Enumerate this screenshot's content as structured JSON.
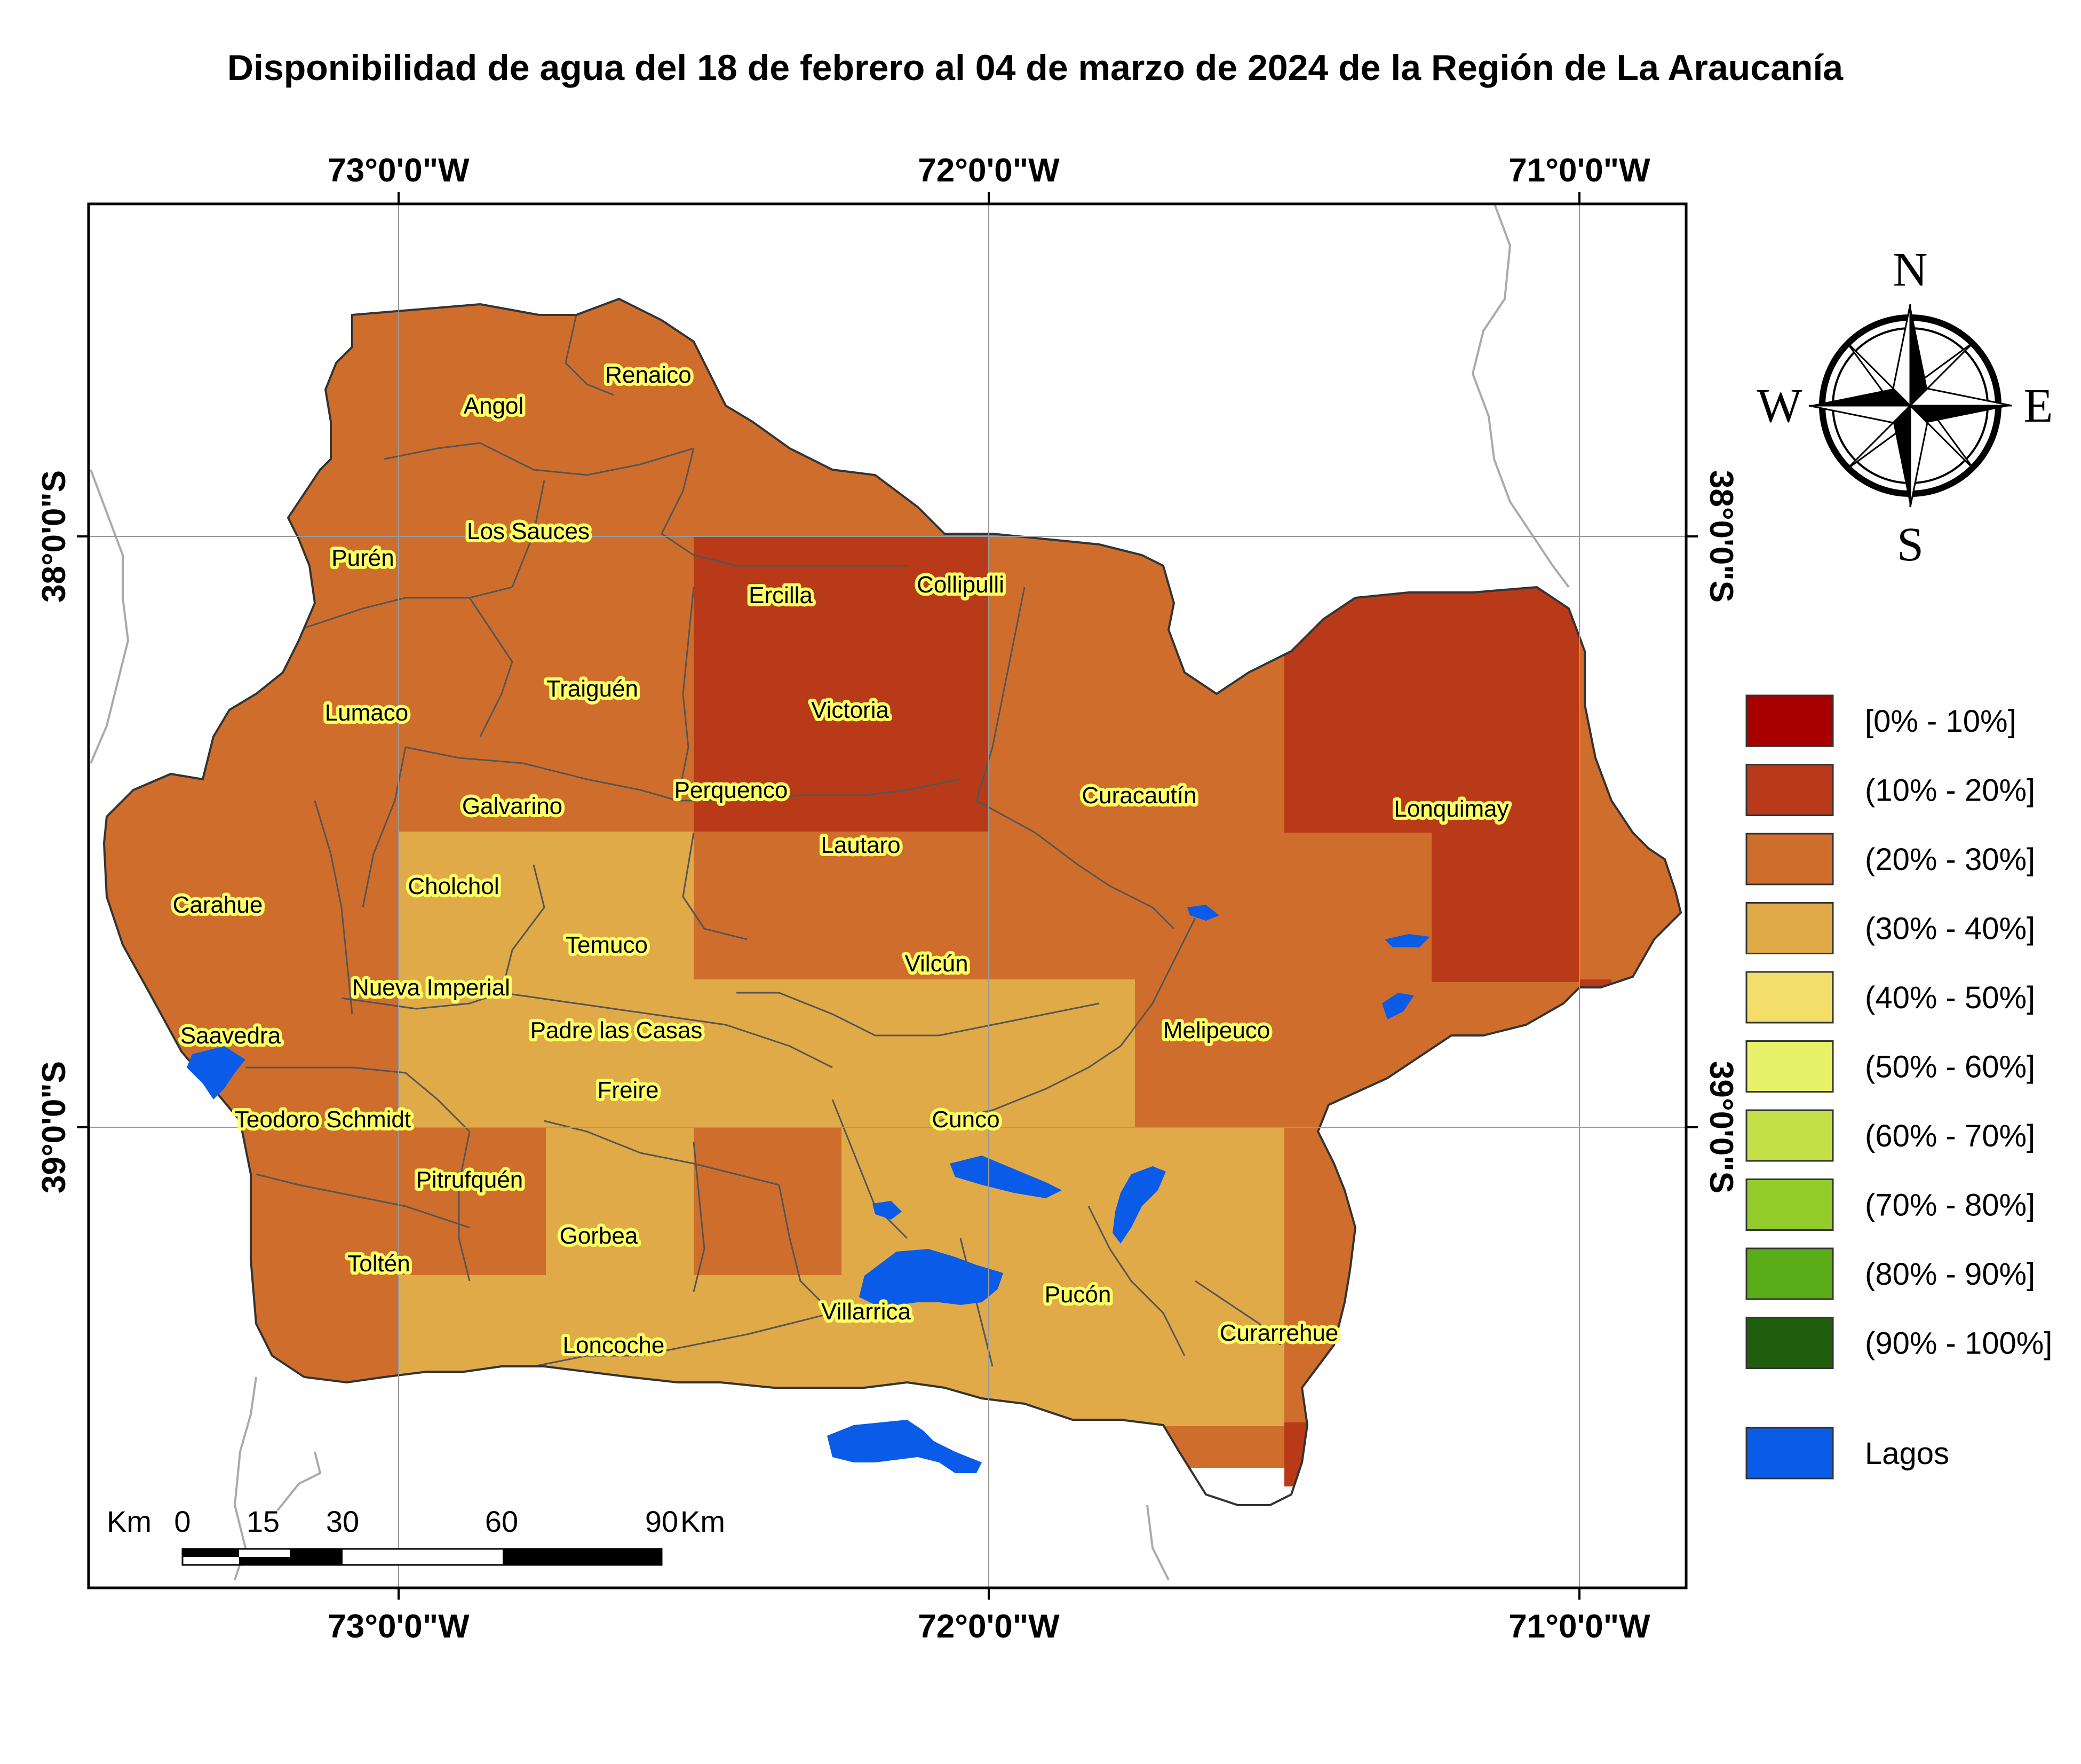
{
  "title": "Disponibilidad de agua del 18 de febrero al 04 de marzo de 2024 de la Región de La Araucanía",
  "axes": {
    "top_labels": [
      "73°0'0\"W",
      "72°0'0\"W",
      "71°0'0\"W"
    ],
    "bottom_labels": [
      "73°0'0\"W",
      "72°0'0\"W",
      "71°0'0\"W"
    ],
    "left_labels": [
      "38°0'0\"S",
      "39°0'0\"S"
    ],
    "right_labels": [
      "38°0'0\"S",
      "39°0'0\"S"
    ]
  },
  "compass": {
    "north": "N",
    "south": "S",
    "east": "E",
    "west": "W"
  },
  "legend": {
    "items": [
      {
        "label": "[0% - 10%]",
        "color": "#a80000"
      },
      {
        "label": "(10% - 20%]",
        "color": "#b83a18"
      },
      {
        "label": "(20% - 30%]",
        "color": "#cf6e2c"
      },
      {
        "label": "(30% - 40%]",
        "color": "#e0aa48"
      },
      {
        "label": "(40% - 50%]",
        "color": "#f2de68"
      },
      {
        "label": "(50% - 60%]",
        "color": "#e8f268"
      },
      {
        "label": "(60% - 70%]",
        "color": "#c3e048"
      },
      {
        "label": "(70% - 80%]",
        "color": "#94cc2c"
      },
      {
        "label": "(80% - 90%]",
        "color": "#5aac18"
      },
      {
        "label": "(90% - 100%]",
        "color": "#1f5e0c"
      }
    ],
    "lakes_label": "Lagos",
    "lakes_color": "#0a5ce8"
  },
  "scale_bar": {
    "unit_left": "Km",
    "ticks": [
      "0",
      "15",
      "30",
      "60",
      "90"
    ],
    "unit_right": "Km"
  },
  "municipalities": [
    {
      "name": "Renaico",
      "class": "(20% - 30%]"
    },
    {
      "name": "Angol",
      "class": "(20% - 30%]"
    },
    {
      "name": "Los Sauces",
      "class": "(20% - 30%]"
    },
    {
      "name": "Purén",
      "class": "(20% - 30%]"
    },
    {
      "name": "Ercilla",
      "class": "(10% - 20%]"
    },
    {
      "name": "Collipulli",
      "class": "(10% - 20%]"
    },
    {
      "name": "Traiguén",
      "class": "(20% - 30%]"
    },
    {
      "name": "Lumaco",
      "class": "(20% - 30%]"
    },
    {
      "name": "Victoria",
      "class": "(10% - 20%]"
    },
    {
      "name": "Perquenco",
      "class": "(10% - 20%]"
    },
    {
      "name": "Galvarino",
      "class": "(20% - 30%]"
    },
    {
      "name": "Curacautín",
      "class": "(20% - 30%]"
    },
    {
      "name": "Lonquimay",
      "class": "(10% - 20%]"
    },
    {
      "name": "Lautaro",
      "class": "(20% - 30%]"
    },
    {
      "name": "Cholchol",
      "class": "(30% - 40%]"
    },
    {
      "name": "Carahue",
      "class": "(20% - 30%]"
    },
    {
      "name": "Temuco",
      "class": "(30% - 40%]"
    },
    {
      "name": "Vilcún",
      "class": "(20% - 30%]"
    },
    {
      "name": "Nueva Imperial",
      "class": "(30% - 40%]"
    },
    {
      "name": "Saavedra",
      "class": "(20% - 30%]"
    },
    {
      "name": "Padre las Casas",
      "class": "(30% - 40%]"
    },
    {
      "name": "Melipeuco",
      "class": "(20% - 30%]"
    },
    {
      "name": "Freire",
      "class": "(30% - 40%]"
    },
    {
      "name": "Teodoro Schmidt",
      "class": "(20% - 30%]"
    },
    {
      "name": "Cunco",
      "class": "(30% - 40%]"
    },
    {
      "name": "Pitrufquén",
      "class": "(20% - 30%]"
    },
    {
      "name": "Gorbea",
      "class": "(30% - 40%]"
    },
    {
      "name": "Toltén",
      "class": "(20% - 30%]"
    },
    {
      "name": "Pucón",
      "class": "(30% - 40%]"
    },
    {
      "name": "Villarrica",
      "class": "(30% - 40%]"
    },
    {
      "name": "Curarrehue",
      "class": "(30% - 40%]"
    },
    {
      "name": "Loncoche",
      "class": "(30% - 40%]"
    }
  ]
}
